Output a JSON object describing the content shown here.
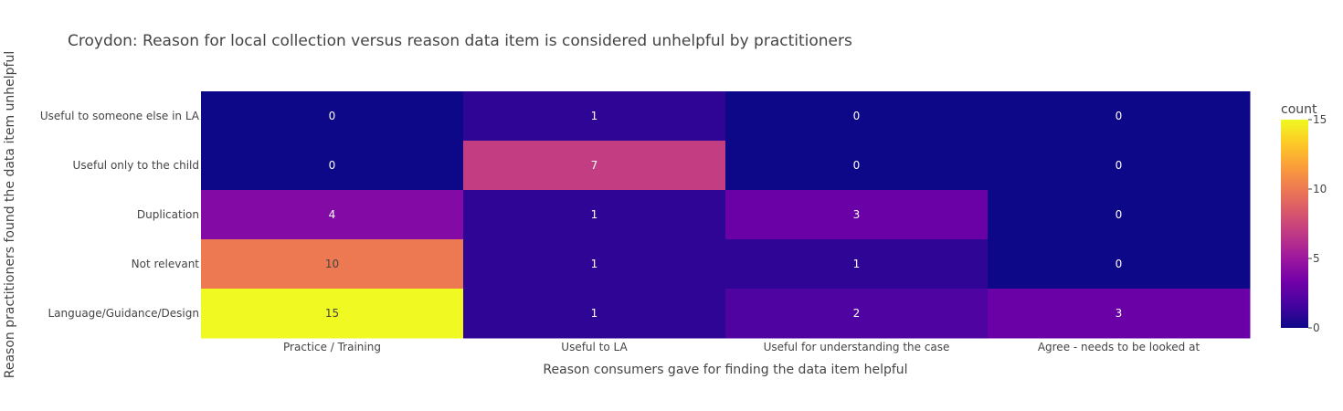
{
  "chart_data": {
    "type": "heatmap",
    "title": "Croydon: Reason for local collection versus reason data item is considered unhelpful by practitioners",
    "xlabel": "Reason consumers gave for finding the data item helpful",
    "ylabel": "Reason practitioners found the data item unhelpful",
    "x": [
      "Practice / Training",
      "Useful to LA",
      "Useful for understanding the case",
      "Agree - needs to be looked at"
    ],
    "y": [
      "Useful to someone else in LA",
      "Useful only to the child",
      "Duplication",
      "Not relevant",
      "Language/Guidance/Design"
    ],
    "z": [
      [
        0,
        1,
        0,
        0
      ],
      [
        0,
        7,
        0,
        0
      ],
      [
        4,
        1,
        3,
        0
      ],
      [
        10,
        1,
        1,
        0
      ],
      [
        15,
        1,
        2,
        3
      ]
    ],
    "colorbar": {
      "title": "count",
      "range": [
        0,
        15
      ],
      "ticks": [
        0,
        5,
        10,
        15
      ]
    },
    "colorscale": [
      "#0d0887",
      "#46039f",
      "#7201a8",
      "#9c179e",
      "#bd3786",
      "#d8576b",
      "#ed7953",
      "#fb9f3a",
      "#fdca26",
      "#f0f921"
    ]
  }
}
